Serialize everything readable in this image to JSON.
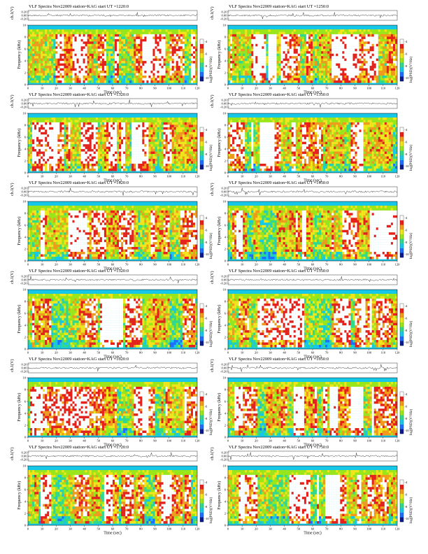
{
  "page": {
    "title_words": [
      "VLF Spectra",
      "Nov22009",
      "station=KAG",
      "start UT ="
    ],
    "trace_ylabel": "ch.1(V)",
    "freq_ylabel": "Frequency (kHz)",
    "x_label": "Time (sec)",
    "colorbar_label": "log(PSD)(V²/Hz)"
  },
  "chart_data": [
    {
      "type": "heatmap",
      "title": "VLF Spectra    Nov22009    station=KAG  start UT =1220:0",
      "start_ut": "1220:0",
      "column": "left",
      "xlabel": "Time (sec)",
      "ylabel": "Frequency (kHz)",
      "xlim": [
        0,
        120
      ],
      "ylim": [
        0,
        10
      ],
      "xticks": [
        0,
        10,
        20,
        30,
        40,
        50,
        60,
        70,
        80,
        90,
        100,
        110,
        120
      ],
      "yticks": [
        0,
        2,
        4,
        6,
        8,
        10
      ],
      "trace_yticks": [
        "0.20",
        "0.00",
        "-0.20"
      ]
    },
    {
      "type": "heatmap",
      "title": "VLF Spectra    Nov22009    station=KAG  start UT =1250:0",
      "start_ut": "1250:0",
      "column": "right",
      "xlabel": "Time (sec)",
      "ylabel": "Frequency (kHz)",
      "xlim": [
        0,
        120
      ],
      "ylim": [
        0,
        10
      ],
      "xticks": [
        0,
        10,
        20,
        30,
        40,
        50,
        60,
        70,
        80,
        90,
        100,
        110,
        120
      ],
      "yticks": [
        0,
        2,
        4,
        6,
        8,
        10
      ],
      "trace_yticks": [
        "0.20",
        "0.00",
        "-0.20"
      ]
    },
    {
      "type": "heatmap",
      "title": "VLF Spectra    Nov22009    station=KAG  start UT =1320:0",
      "start_ut": "1320:0",
      "column": "left",
      "xlabel": "Time (sec)",
      "ylabel": "Frequency (kHz)",
      "xlim": [
        0,
        120
      ],
      "ylim": [
        0,
        10
      ],
      "xticks": [
        0,
        10,
        20,
        30,
        40,
        50,
        60,
        70,
        80,
        90,
        100,
        110,
        120
      ],
      "yticks": [
        0,
        2,
        4,
        6,
        8,
        10
      ],
      "trace_yticks": [
        "0.20",
        "0.00",
        "-0.20"
      ]
    },
    {
      "type": "heatmap",
      "title": "VLF Spectra    Nov22009    station=KAG  start UT =1350:0",
      "start_ut": "1350:0",
      "column": "right",
      "xlabel": "Time (sec)",
      "ylabel": "Frequency (kHz)",
      "xlim": [
        0,
        120
      ],
      "ylim": [
        0,
        10
      ],
      "xticks": [
        0,
        10,
        20,
        30,
        40,
        50,
        60,
        70,
        80,
        90,
        100,
        110,
        120
      ],
      "yticks": [
        0,
        2,
        4,
        6,
        8,
        10
      ],
      "trace_yticks": [
        "0.20",
        "0.00",
        "-0.20"
      ]
    },
    {
      "type": "heatmap",
      "title": "VLF Spectra    Nov22009    station=KAG  start UT =1420:0",
      "start_ut": "1420:0",
      "column": "left",
      "xlabel": "Time (sec)",
      "ylabel": "Frequency (kHz)",
      "xlim": [
        0,
        120
      ],
      "ylim": [
        0,
        10
      ],
      "xticks": [
        0,
        10,
        20,
        30,
        40,
        50,
        60,
        70,
        80,
        90,
        100,
        110,
        120
      ],
      "yticks": [
        0,
        2,
        4,
        6,
        8,
        10
      ],
      "trace_yticks": [
        "0.20",
        "0.00",
        "-0.20"
      ]
    },
    {
      "type": "heatmap",
      "title": "VLF Spectra    Nov22009    station=KAG  start UT =1450:0",
      "start_ut": "1450:0",
      "column": "right",
      "xlabel": "Time (sec)",
      "ylabel": "Frequency (kHz)",
      "xlim": [
        0,
        120
      ],
      "ylim": [
        0,
        10
      ],
      "xticks": [
        0,
        10,
        20,
        30,
        40,
        50,
        60,
        70,
        80,
        90,
        100,
        110,
        120
      ],
      "yticks": [
        0,
        2,
        4,
        6,
        8,
        10
      ],
      "trace_yticks": [
        "0.20",
        "0.00",
        "-0.20"
      ]
    },
    {
      "type": "heatmap",
      "title": "VLF Spectra    Nov22009    station=KAG  start UT =1520:0",
      "start_ut": "1520:0",
      "column": "left",
      "xlabel": "Time (sec)",
      "ylabel": "Frequency (kHz)",
      "xlim": [
        0,
        120
      ],
      "ylim": [
        0,
        10
      ],
      "xticks": [
        0,
        10,
        20,
        30,
        40,
        50,
        60,
        70,
        80,
        90,
        100,
        110,
        120
      ],
      "yticks": [
        0,
        2,
        4,
        6,
        8,
        10
      ],
      "trace_yticks": [
        "0.20",
        "0.00",
        "-0.20"
      ]
    },
    {
      "type": "heatmap",
      "title": "VLF Spectra    Nov22009    station=KAG  start UT =1550:0",
      "start_ut": "1550:0",
      "column": "right",
      "xlabel": "Time (sec)",
      "ylabel": "Frequency (kHz)",
      "xlim": [
        0,
        120
      ],
      "ylim": [
        0,
        10
      ],
      "xticks": [
        0,
        10,
        20,
        30,
        40,
        50,
        60,
        70,
        80,
        90,
        100,
        110,
        120
      ],
      "yticks": [
        0,
        2,
        4,
        6,
        8,
        10
      ],
      "trace_yticks": [
        "0.20",
        "0.00",
        "-0.20"
      ]
    },
    {
      "type": "heatmap",
      "title": "VLF Spectra    Nov22009    station=KAG  start UT =1620:0",
      "start_ut": "1620:0",
      "column": "left",
      "xlabel": "Time (sec)",
      "ylabel": "Frequency (kHz)",
      "xlim": [
        0,
        120
      ],
      "ylim": [
        0,
        10
      ],
      "xticks": [
        0,
        10,
        20,
        30,
        40,
        50,
        60,
        70,
        80,
        90,
        100,
        110,
        120
      ],
      "yticks": [
        0,
        2,
        4,
        6,
        8,
        10
      ],
      "trace_yticks": [
        "0.20",
        "0.00",
        "-0.20"
      ]
    },
    {
      "type": "heatmap",
      "title": "VLF Spectra    Nov22009    station=KAG  start UT =1650:0",
      "start_ut": "1650:0",
      "column": "right",
      "xlabel": "Time (sec)",
      "ylabel": "Frequency (kHz)",
      "xlim": [
        0,
        120
      ],
      "ylim": [
        0,
        10
      ],
      "xticks": [
        0,
        10,
        20,
        30,
        40,
        50,
        60,
        70,
        80,
        90,
        100,
        110,
        120
      ],
      "yticks": [
        0,
        2,
        4,
        6,
        8,
        10
      ],
      "trace_yticks": [
        "0.20",
        "0.00",
        "-0.20"
      ]
    },
    {
      "type": "heatmap",
      "title": "VLF Spectra    Nov22009    station=KAG  start UT =1720:0",
      "start_ut": "1720:0",
      "column": "left",
      "xlabel": "Time (sec)",
      "ylabel": "Frequency (kHz)",
      "xlim": [
        0,
        120
      ],
      "ylim": [
        0,
        10
      ],
      "xticks": [
        0,
        10,
        20,
        30,
        40,
        50,
        60,
        70,
        80,
        90,
        100,
        110,
        120
      ],
      "yticks": [
        0,
        2,
        4,
        6,
        8,
        10
      ],
      "trace_yticks": [
        "0.20",
        "0.00",
        "-0.20"
      ]
    },
    {
      "type": "heatmap",
      "title": "VLF Spectra    Nov22009    station=KAG  start UT =1750:0",
      "start_ut": "1750:0",
      "column": "right",
      "xlabel": "Time (sec)",
      "ylabel": "Frequency (kHz)",
      "xlim": [
        0,
        120
      ],
      "ylim": [
        0,
        10
      ],
      "xticks": [
        0,
        10,
        20,
        30,
        40,
        50,
        60,
        70,
        80,
        90,
        100,
        110,
        120
      ],
      "yticks": [
        0,
        2,
        4,
        6,
        8,
        10
      ],
      "trace_yticks": [
        "0.20",
        "0.00",
        "-0.20"
      ]
    }
  ],
  "colorscale": [
    "#0a1a8c",
    "#1f6dff",
    "#17c7e8",
    "#33d98a",
    "#9be619",
    "#f2e61a",
    "#f29a1a",
    "#e8201a",
    "#ffffff"
  ],
  "colorbar_ticks": [
    "-4",
    "-6",
    "-8",
    "-10"
  ]
}
